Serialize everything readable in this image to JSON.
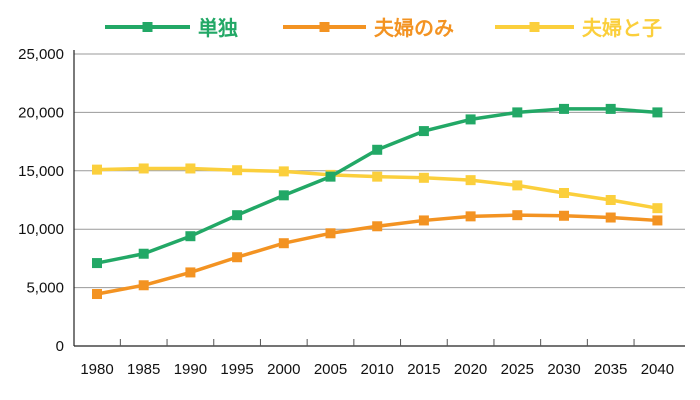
{
  "chart_data": {
    "type": "line",
    "x": [
      "1980",
      "1985",
      "1990",
      "1995",
      "2000",
      "2005",
      "2010",
      "2015",
      "2020",
      "2025",
      "2030",
      "2035",
      "2040"
    ],
    "ylim": [
      0,
      25000
    ],
    "yticks": [
      "0",
      "5,000",
      "10,000",
      "15,000",
      "20,000",
      "25,000"
    ],
    "grid": true,
    "legend_position": "top",
    "series": [
      {
        "name": "単独",
        "color": "#22a866",
        "values": [
          7100,
          7900,
          9400,
          11200,
          12900,
          14500,
          16800,
          18400,
          19400,
          20000,
          20300,
          20300,
          20000
        ]
      },
      {
        "name": "夫婦のみ",
        "color": "#f39322",
        "values": [
          4450,
          5200,
          6300,
          7600,
          8800,
          9650,
          10250,
          10750,
          11100,
          11200,
          11150,
          11000,
          10750
        ]
      },
      {
        "name": "夫婦と子",
        "color": "#fbcf3c",
        "values": [
          15100,
          15200,
          15200,
          15050,
          14950,
          14650,
          14500,
          14400,
          14200,
          13750,
          13100,
          12500,
          11800
        ]
      }
    ]
  }
}
